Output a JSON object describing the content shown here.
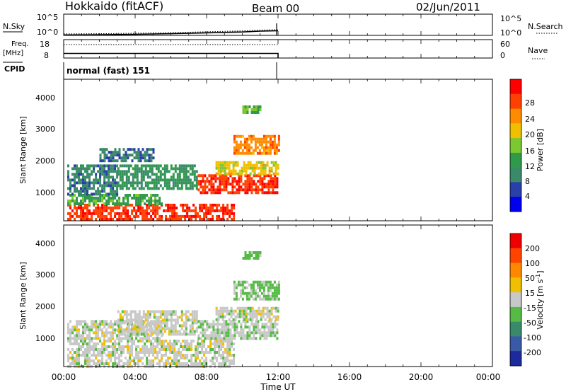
{
  "header": {
    "station": "Hokkaido (fitACF)",
    "beam": "Beam 00",
    "date": "02/Jun/2011"
  },
  "panels": {
    "nsky": {
      "label": "N.Sky",
      "left_ticks": [
        "10^5",
        "10^0"
      ],
      "right_ticks": [
        "10^5",
        "10^0"
      ],
      "right_label": "N.Search"
    },
    "freq": {
      "label_1": "Freq.",
      "label_2": "[MHz]",
      "left_ticks": [
        "18",
        "8"
      ],
      "right_ticks": [
        "60",
        "0"
      ],
      "right_label": "Nave"
    },
    "cpid": {
      "label": "CPID",
      "text": "normal (fast) 151"
    }
  },
  "power_panel": {
    "ylabel": "Slant Range [km]",
    "yticks": [
      "4000",
      "3000",
      "2000",
      "1000"
    ],
    "colorbar_label": "Power [dB]",
    "colorbar_ticks": [
      "28",
      "24",
      "20",
      "16",
      "12",
      "8",
      "4"
    ],
    "colors": [
      "#0000ee",
      "#2a3fa8",
      "#3a8a6a",
      "#2e9a4a",
      "#7cc830",
      "#f0c000",
      "#ff8c00",
      "#ff4000",
      "#ff0000"
    ]
  },
  "velocity_panel": {
    "ylabel": "Slant Range [km]",
    "yticks": [
      "4000",
      "3000",
      "2000",
      "1000"
    ],
    "colorbar_label": "Velocity [m s",
    "colorbar_label_sup": "-1",
    "colorbar_label_end": "]",
    "colorbar_ticks": [
      "200",
      "100",
      "50",
      "15",
      "-15",
      "-50",
      "-100",
      "-200"
    ],
    "colors": [
      "#1c2a9c",
      "#3a5aa8",
      "#3a8a6a",
      "#55bb44",
      "#c8c8c8",
      "#f0c000",
      "#ff8800",
      "#ff4400",
      "#ee0000"
    ]
  },
  "time_axis": {
    "label": "Time UT",
    "ticks": [
      "00:00",
      "04:00",
      "08:00",
      "12:00",
      "16:00",
      "20:00",
      "00:00"
    ]
  },
  "chart_data": [
    {
      "type": "line",
      "panel": "N.Sky",
      "x_range_hours": [
        0,
        24
      ],
      "x": [
        0,
        2,
        4,
        6,
        8,
        10,
        11,
        12
      ],
      "y_log10": [
        0.1,
        0.15,
        0.25,
        0.4,
        0.6,
        0.8,
        1.0,
        1.1
      ],
      "ylim_log10": [
        0,
        5
      ]
    },
    {
      "type": "line",
      "panel": "Freq",
      "x_range_hours": [
        0,
        24
      ],
      "x": [
        0,
        12
      ],
      "freq_mhz": [
        10.5,
        10.5
      ],
      "nave": [
        37,
        37
      ],
      "freq_ylim": [
        8,
        18
      ],
      "nave_ylim": [
        0,
        60
      ]
    },
    {
      "type": "heatmap",
      "panel": "Power",
      "x_range_hours": [
        0,
        24
      ],
      "y_range_km": [
        180,
        4500
      ],
      "data_end_hours": 12,
      "units": "dB",
      "clim": [
        0,
        30
      ],
      "regions": [
        {
          "t": [
            0.2,
            9.5
          ],
          "r": [
            200,
            700
          ],
          "value": 26
        },
        {
          "t": [
            0.2,
            5.5
          ],
          "r": [
            700,
            1000
          ],
          "value": 12
        },
        {
          "t": [
            0.2,
            3.0
          ],
          "r": [
            1000,
            1900
          ],
          "value": 8
        },
        {
          "t": [
            3.0,
            7.5
          ],
          "r": [
            1200,
            1900
          ],
          "value": 10
        },
        {
          "t": [
            7.5,
            12.0
          ],
          "r": [
            1000,
            1600
          ],
          "value": 26
        },
        {
          "t": [
            8.5,
            12.0
          ],
          "r": [
            1600,
            2000
          ],
          "value": 18
        },
        {
          "t": [
            9.5,
            12.0
          ],
          "r": [
            2200,
            2800
          ],
          "value": 22
        },
        {
          "t": [
            2.0,
            5.0
          ],
          "r": [
            2000,
            2400
          ],
          "value": 7
        },
        {
          "t": [
            10.0,
            11.0
          ],
          "r": [
            3500,
            3700
          ],
          "value": 14
        }
      ]
    },
    {
      "type": "heatmap",
      "panel": "Velocity",
      "x_range_hours": [
        0,
        24
      ],
      "y_range_km": [
        180,
        4500
      ],
      "data_end_hours": 12,
      "units": "m s^-1",
      "clim": [
        -200,
        200
      ],
      "regions": [
        {
          "t": [
            0.2,
            9.5
          ],
          "r": [
            200,
            1000
          ],
          "value": 0
        },
        {
          "t": [
            0.2,
            5.5
          ],
          "r": [
            1000,
            1600
          ],
          "value": 0
        },
        {
          "t": [
            3.0,
            7.5
          ],
          "r": [
            1200,
            1900
          ],
          "value": 0
        },
        {
          "t": [
            7.5,
            12.0
          ],
          "r": [
            1000,
            1600
          ],
          "value": -10
        },
        {
          "t": [
            8.5,
            12.0
          ],
          "r": [
            1600,
            2000
          ],
          "value": 0
        },
        {
          "t": [
            9.5,
            12.0
          ],
          "r": [
            2200,
            2800
          ],
          "value": -30
        },
        {
          "t": [
            10.0,
            11.0
          ],
          "r": [
            3500,
            3700
          ],
          "value": -40
        }
      ]
    }
  ]
}
